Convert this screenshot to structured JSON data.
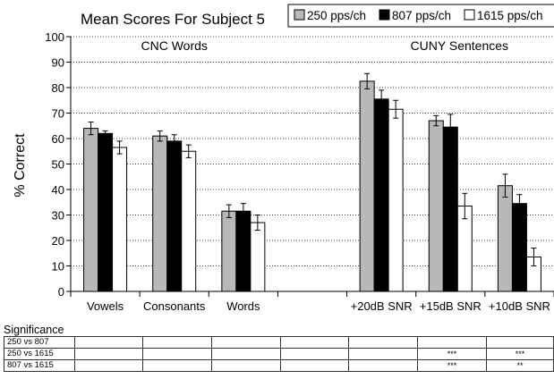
{
  "chart_data": {
    "type": "bar",
    "title": "Mean Scores For Subject 5",
    "ylabel": "% Correct",
    "xlabel": "",
    "ylim": [
      0,
      100
    ],
    "yticks": [
      0,
      10,
      20,
      30,
      40,
      50,
      60,
      70,
      80,
      90,
      100
    ],
    "grid": "horizontal dotted",
    "legend_position": "top-right",
    "group_headers": [
      "CNC Words",
      "CUNY Sentences"
    ],
    "categories": [
      "Vowels",
      "Consonants",
      "Words",
      "",
      "+20dB SNR",
      "+15dB SNR",
      "+10dB SNR"
    ],
    "series": [
      {
        "name": "250 pps/ch",
        "color": "#b8b8b8",
        "values": [
          64,
          61,
          31.5,
          null,
          82.5,
          67,
          41.5
        ],
        "errors": [
          2.5,
          2,
          2.5,
          null,
          3,
          2,
          4.5
        ]
      },
      {
        "name": "807 pps/ch",
        "color": "#000000",
        "values": [
          62,
          59,
          31.5,
          null,
          75.5,
          64.5,
          34.5
        ],
        "errors": [
          1,
          2.5,
          3,
          null,
          3.5,
          5,
          3.5
        ]
      },
      {
        "name": "1615 pps/ch",
        "color": "#ffffff",
        "values": [
          56.5,
          55,
          27,
          null,
          71.5,
          33.5,
          13.5
        ],
        "errors": [
          2.5,
          2.5,
          3,
          null,
          3.5,
          5,
          3.5
        ]
      }
    ]
  },
  "significance": {
    "label": "Significance",
    "rows": [
      {
        "name": "250 vs 807",
        "cells": [
          "",
          "",
          "",
          "",
          "",
          "",
          ""
        ]
      },
      {
        "name": "250 vs 1615",
        "cells": [
          "",
          "",
          "",
          "",
          "",
          "***",
          "***"
        ]
      },
      {
        "name": "807 vs 1615",
        "cells": [
          "",
          "",
          "",
          "",
          "",
          "***",
          "**"
        ]
      }
    ]
  }
}
